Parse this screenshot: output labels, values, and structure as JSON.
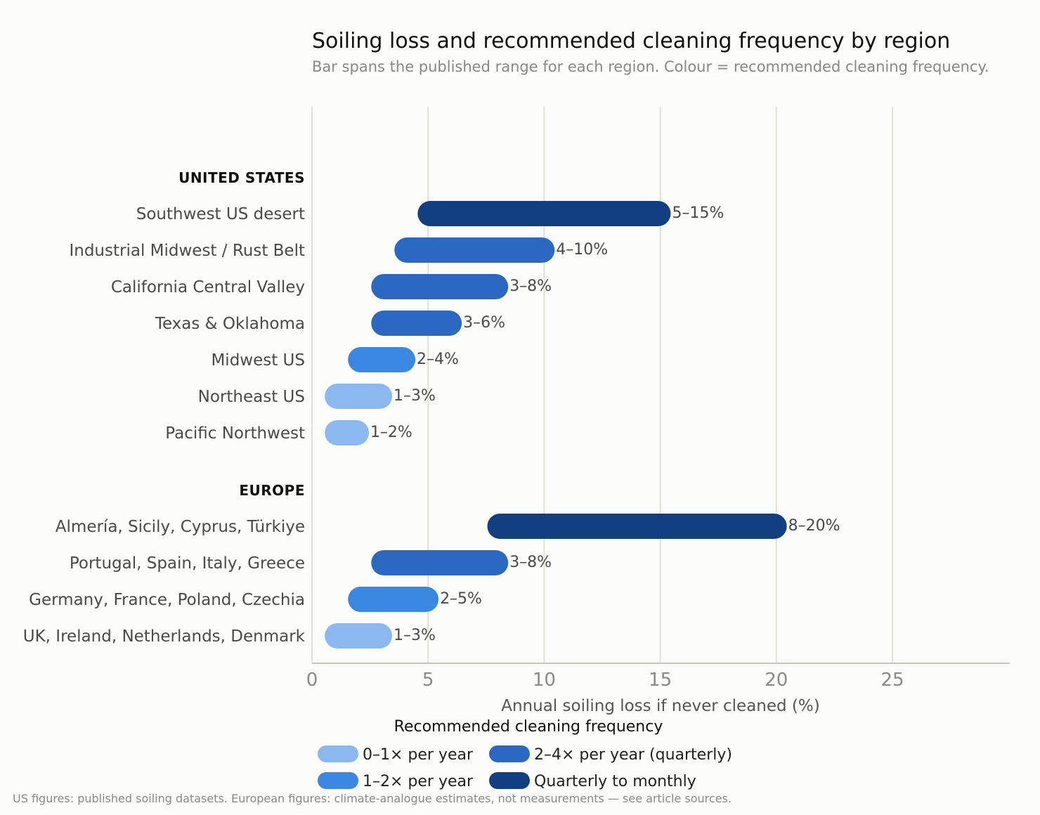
{
  "chart_data": {
    "type": "bar",
    "title": "Soiling loss and recommended cleaning frequency by region",
    "subtitle": "Bar spans the published range for each region. Colour = recommended cleaning frequency.",
    "xlabel": "Annual soiling loss if never cleaned (%)",
    "xlim": [
      0,
      30
    ],
    "xticks": [
      0,
      5,
      10,
      15,
      20,
      25
    ],
    "grid": true,
    "orientation": "horizontal",
    "groups": [
      {
        "name": "UNITED STATES",
        "rows": [
          {
            "category": "Southwest US desert",
            "low": 5,
            "high": 15,
            "label": "5–15%",
            "frequency": "Quarterly to monthly"
          },
          {
            "category": "Industrial Midwest / Rust Belt",
            "low": 4,
            "high": 10,
            "label": "4–10%",
            "frequency": "2–4× per year (quarterly)"
          },
          {
            "category": "California Central Valley",
            "low": 3,
            "high": 8,
            "label": "3–8%",
            "frequency": "2–4× per year (quarterly)"
          },
          {
            "category": "Texas & Oklahoma",
            "low": 3,
            "high": 6,
            "label": "3–6%",
            "frequency": "2–4× per year (quarterly)"
          },
          {
            "category": "Midwest US",
            "low": 2,
            "high": 4,
            "label": "2–4%",
            "frequency": "1–2× per year"
          },
          {
            "category": "Northeast US",
            "low": 1,
            "high": 3,
            "label": "1–3%",
            "frequency": "0–1× per year"
          },
          {
            "category": "Pacific Northwest",
            "low": 1,
            "high": 2,
            "label": "1–2%",
            "frequency": "0–1× per year"
          }
        ]
      },
      {
        "name": "EUROPE",
        "rows": [
          {
            "category": "Almería, Sicily, Cyprus, Türkiye",
            "low": 8,
            "high": 20,
            "label": "8–20%",
            "frequency": "Quarterly to monthly"
          },
          {
            "category": "Portugal, Spain, Italy, Greece",
            "low": 3,
            "high": 8,
            "label": "3–8%",
            "frequency": "2–4× per year (quarterly)"
          },
          {
            "category": "Germany, France, Poland, Czechia",
            "low": 2,
            "high": 5,
            "label": "2–5%",
            "frequency": "1–2× per year"
          },
          {
            "category": "UK, Ireland, Netherlands, Denmark",
            "low": 1,
            "high": 3,
            "label": "1–3%",
            "frequency": "0–1× per year"
          }
        ]
      }
    ],
    "legend": {
      "title": "Recommended cleaning frequency",
      "placement": "bottom",
      "entries": [
        {
          "name": "0–1× per year",
          "color": "#8ab8ef"
        },
        {
          "name": "1–2× per year",
          "color": "#3a88e2"
        },
        {
          "name": "2–4× per year (quarterly)",
          "color": "#2a68c1"
        },
        {
          "name": "Quarterly to monthly",
          "color": "#123f82"
        }
      ]
    },
    "footnote": "US figures: published soiling datasets.  European figures: climate-analogue estimates, not measurements — see article sources."
  }
}
